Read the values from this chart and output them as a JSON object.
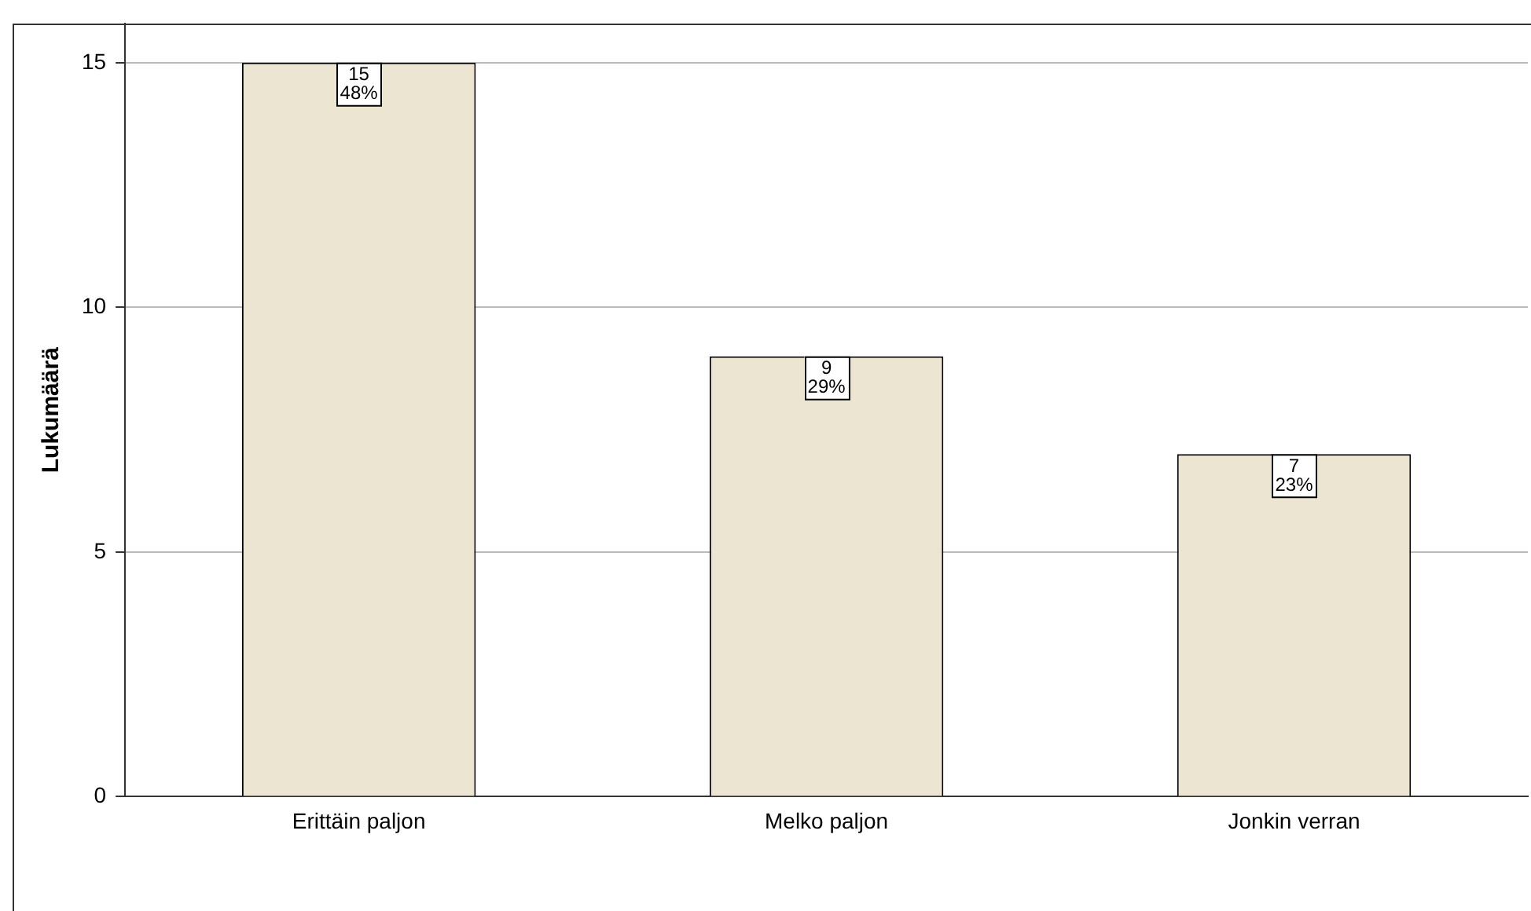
{
  "chart_data": {
    "type": "bar",
    "ylabel": "Lukumäärä",
    "categories": [
      "Erittäin paljon",
      "Melko paljon",
      "Jonkin verran"
    ],
    "values": [
      15,
      9,
      7
    ],
    "color": "#ebe5d2",
    "value_labels": [
      "15\n48%",
      "9\n29%",
      "7\n23%"
    ],
    "ylim": [
      0,
      15.8
    ],
    "yticks": [
      0,
      5,
      10,
      15
    ],
    "grid": "y",
    "legend": false
  }
}
